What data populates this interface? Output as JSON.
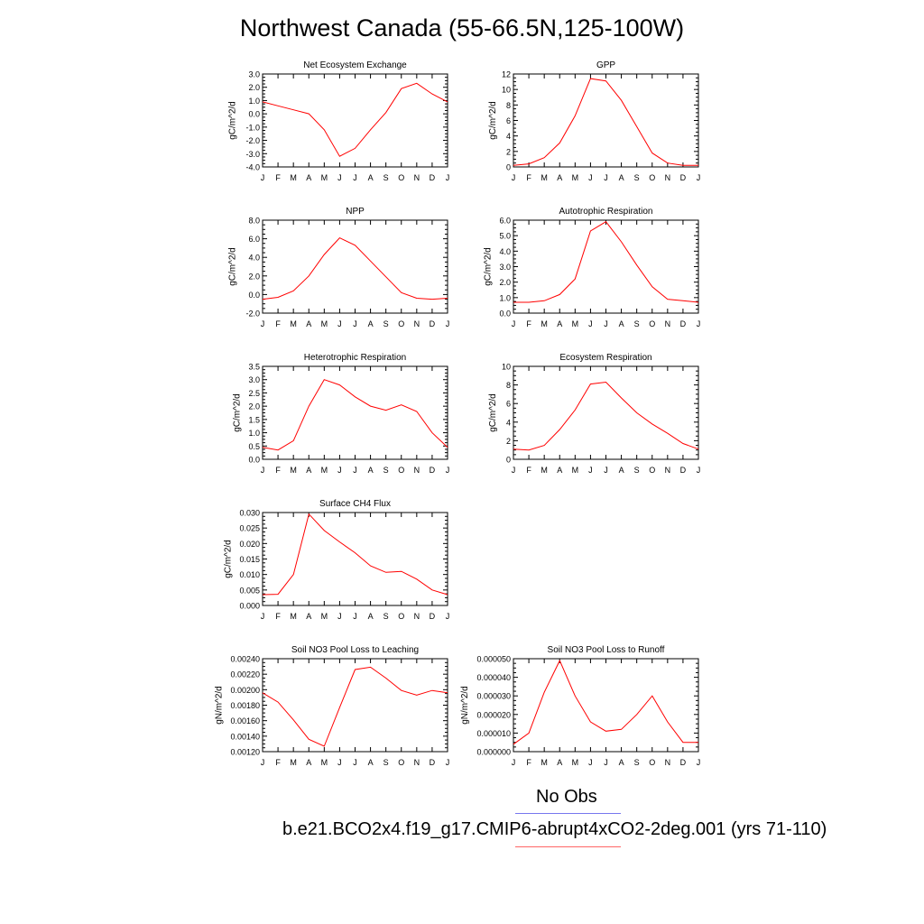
{
  "figure": {
    "title": "Northwest Canada (55-66.5N,125-100W)"
  },
  "legend": {
    "entries": [
      {
        "label": "No Obs",
        "color": "#7777ee"
      },
      {
        "label": "b.e21.BCO2x4.f19_g17.CMIP6-abrupt4xCO2-2deg.001 (yrs 71-110)",
        "color": "#ff6666"
      }
    ]
  },
  "colors": {
    "series": "#ff0000",
    "axis": "#000000"
  },
  "chart_data": [
    {
      "type": "line",
      "title": "Net Ecosystem Exchange",
      "xlabel": "",
      "ylabel": "gC/m^2/d",
      "categories": [
        "J",
        "F",
        "M",
        "A",
        "M",
        "J",
        "J",
        "A",
        "S",
        "O",
        "N",
        "D",
        "J"
      ],
      "ylim": [
        -4.0,
        3.0
      ],
      "yticks": [
        "-4.0",
        "-3.0",
        "-2.0",
        "-1.0",
        "0.0",
        "1.0",
        "2.0",
        "3.0"
      ],
      "series": [
        {
          "values": [
            0.9,
            0.6,
            0.3,
            0.0,
            -1.2,
            -3.2,
            -2.6,
            -1.2,
            0.1,
            1.9,
            2.3,
            1.5,
            0.9
          ]
        }
      ]
    },
    {
      "type": "line",
      "title": "GPP",
      "xlabel": "",
      "ylabel": "gC/m^2/d",
      "categories": [
        "J",
        "F",
        "M",
        "A",
        "M",
        "J",
        "J",
        "A",
        "S",
        "O",
        "N",
        "D",
        "J"
      ],
      "ylim": [
        0,
        12
      ],
      "yticks": [
        "0",
        "2",
        "4",
        "6",
        "8",
        "10",
        "12"
      ],
      "series": [
        {
          "values": [
            0.2,
            0.4,
            1.2,
            3.1,
            6.6,
            11.4,
            11.1,
            8.6,
            5.2,
            1.8,
            0.5,
            0.2,
            0.2
          ]
        }
      ]
    },
    {
      "type": "line",
      "title": "NPP",
      "xlabel": "",
      "ylabel": "gC/m^2/d",
      "categories": [
        "J",
        "F",
        "M",
        "A",
        "M",
        "J",
        "J",
        "A",
        "S",
        "O",
        "N",
        "D",
        "J"
      ],
      "ylim": [
        -2.0,
        8.0
      ],
      "yticks": [
        "-2.0",
        "0.0",
        "2.0",
        "4.0",
        "6.0",
        "8.0"
      ],
      "series": [
        {
          "values": [
            -0.5,
            -0.3,
            0.4,
            2.0,
            4.3,
            6.1,
            5.3,
            3.6,
            1.9,
            0.2,
            -0.4,
            -0.5,
            -0.4
          ]
        }
      ]
    },
    {
      "type": "line",
      "title": "Autotrophic Respiration",
      "xlabel": "",
      "ylabel": "gC/m^2/d",
      "categories": [
        "J",
        "F",
        "M",
        "A",
        "M",
        "J",
        "J",
        "A",
        "S",
        "O",
        "N",
        "D",
        "J"
      ],
      "ylim": [
        0.0,
        6.0
      ],
      "yticks": [
        "0.0",
        "1.0",
        "2.0",
        "3.0",
        "4.0",
        "5.0",
        "6.0"
      ],
      "series": [
        {
          "values": [
            0.7,
            0.7,
            0.8,
            1.2,
            2.2,
            5.3,
            5.9,
            4.6,
            3.1,
            1.7,
            0.9,
            0.8,
            0.7
          ]
        }
      ]
    },
    {
      "type": "line",
      "title": "Heterotrophic Respiration",
      "xlabel": "",
      "ylabel": "gC/m^2/d",
      "categories": [
        "J",
        "F",
        "M",
        "A",
        "M",
        "J",
        "J",
        "A",
        "S",
        "O",
        "N",
        "D",
        "J"
      ],
      "ylim": [
        0.0,
        3.5
      ],
      "yticks": [
        "0.0",
        "0.5",
        "1.0",
        "1.5",
        "2.0",
        "2.5",
        "3.0",
        "3.5"
      ],
      "series": [
        {
          "values": [
            0.45,
            0.35,
            0.7,
            2.0,
            3.0,
            2.8,
            2.35,
            2.0,
            1.85,
            2.05,
            1.8,
            1.0,
            0.45
          ]
        }
      ]
    },
    {
      "type": "line",
      "title": "Ecosystem Respiration",
      "xlabel": "",
      "ylabel": "gC/m^2/d",
      "categories": [
        "J",
        "F",
        "M",
        "A",
        "M",
        "J",
        "J",
        "A",
        "S",
        "O",
        "N",
        "D",
        "J"
      ],
      "ylim": [
        0,
        10
      ],
      "yticks": [
        "0",
        "2",
        "4",
        "6",
        "8",
        "10"
      ],
      "series": [
        {
          "values": [
            1.1,
            1.0,
            1.5,
            3.2,
            5.3,
            8.1,
            8.3,
            6.6,
            5.0,
            3.8,
            2.8,
            1.7,
            1.1
          ]
        }
      ]
    },
    {
      "type": "line",
      "title": "Surface CH4 Flux",
      "xlabel": "",
      "ylabel": "gC/m^2/d",
      "categories": [
        "J",
        "F",
        "M",
        "A",
        "M",
        "J",
        "J",
        "A",
        "S",
        "O",
        "N",
        "D",
        "J"
      ],
      "ylim": [
        0.0,
        0.03
      ],
      "yticks": [
        "0.000",
        "0.005",
        "0.010",
        "0.015",
        "0.020",
        "0.025",
        "0.030"
      ],
      "series": [
        {
          "values": [
            0.0035,
            0.0036,
            0.01,
            0.0295,
            0.0242,
            0.0205,
            0.017,
            0.0128,
            0.0107,
            0.011,
            0.0085,
            0.005,
            0.0035
          ]
        }
      ]
    },
    {
      "type": "line",
      "title": "Soil NO3 Pool Loss to Leaching",
      "xlabel": "",
      "ylabel": "gN/m^2/d",
      "categories": [
        "J",
        "F",
        "M",
        "A",
        "M",
        "J",
        "J",
        "A",
        "S",
        "O",
        "N",
        "D",
        "J"
      ],
      "ylim": [
        0.0012,
        0.0024
      ],
      "yticks": [
        "0.00120",
        "0.00140",
        "0.00160",
        "0.00180",
        "0.00200",
        "0.00220",
        "0.00240"
      ],
      "series": [
        {
          "values": [
            0.00196,
            0.00184,
            0.00161,
            0.00136,
            0.00127,
            0.00177,
            0.00226,
            0.00229,
            0.00215,
            0.00199,
            0.00193,
            0.00199,
            0.00196
          ]
        }
      ]
    },
    {
      "type": "line",
      "title": "Soil NO3 Pool Loss to Runoff",
      "xlabel": "",
      "ylabel": "gN/m^2/d",
      "categories": [
        "J",
        "F",
        "M",
        "A",
        "M",
        "J",
        "J",
        "A",
        "S",
        "O",
        "N",
        "D",
        "J"
      ],
      "ylim": [
        0.0,
        5e-05
      ],
      "yticks": [
        "0.000000",
        "0.000010",
        "0.000020",
        "0.000030",
        "0.000040",
        "0.000050"
      ],
      "series": [
        {
          "values": [
            4e-06,
            1e-05,
            3.2e-05,
            4.9e-05,
            3e-05,
            1.6e-05,
            1.1e-05,
            1.2e-05,
            2e-05,
            3e-05,
            1.6e-05,
            5e-06,
            5e-06
          ]
        }
      ]
    }
  ]
}
